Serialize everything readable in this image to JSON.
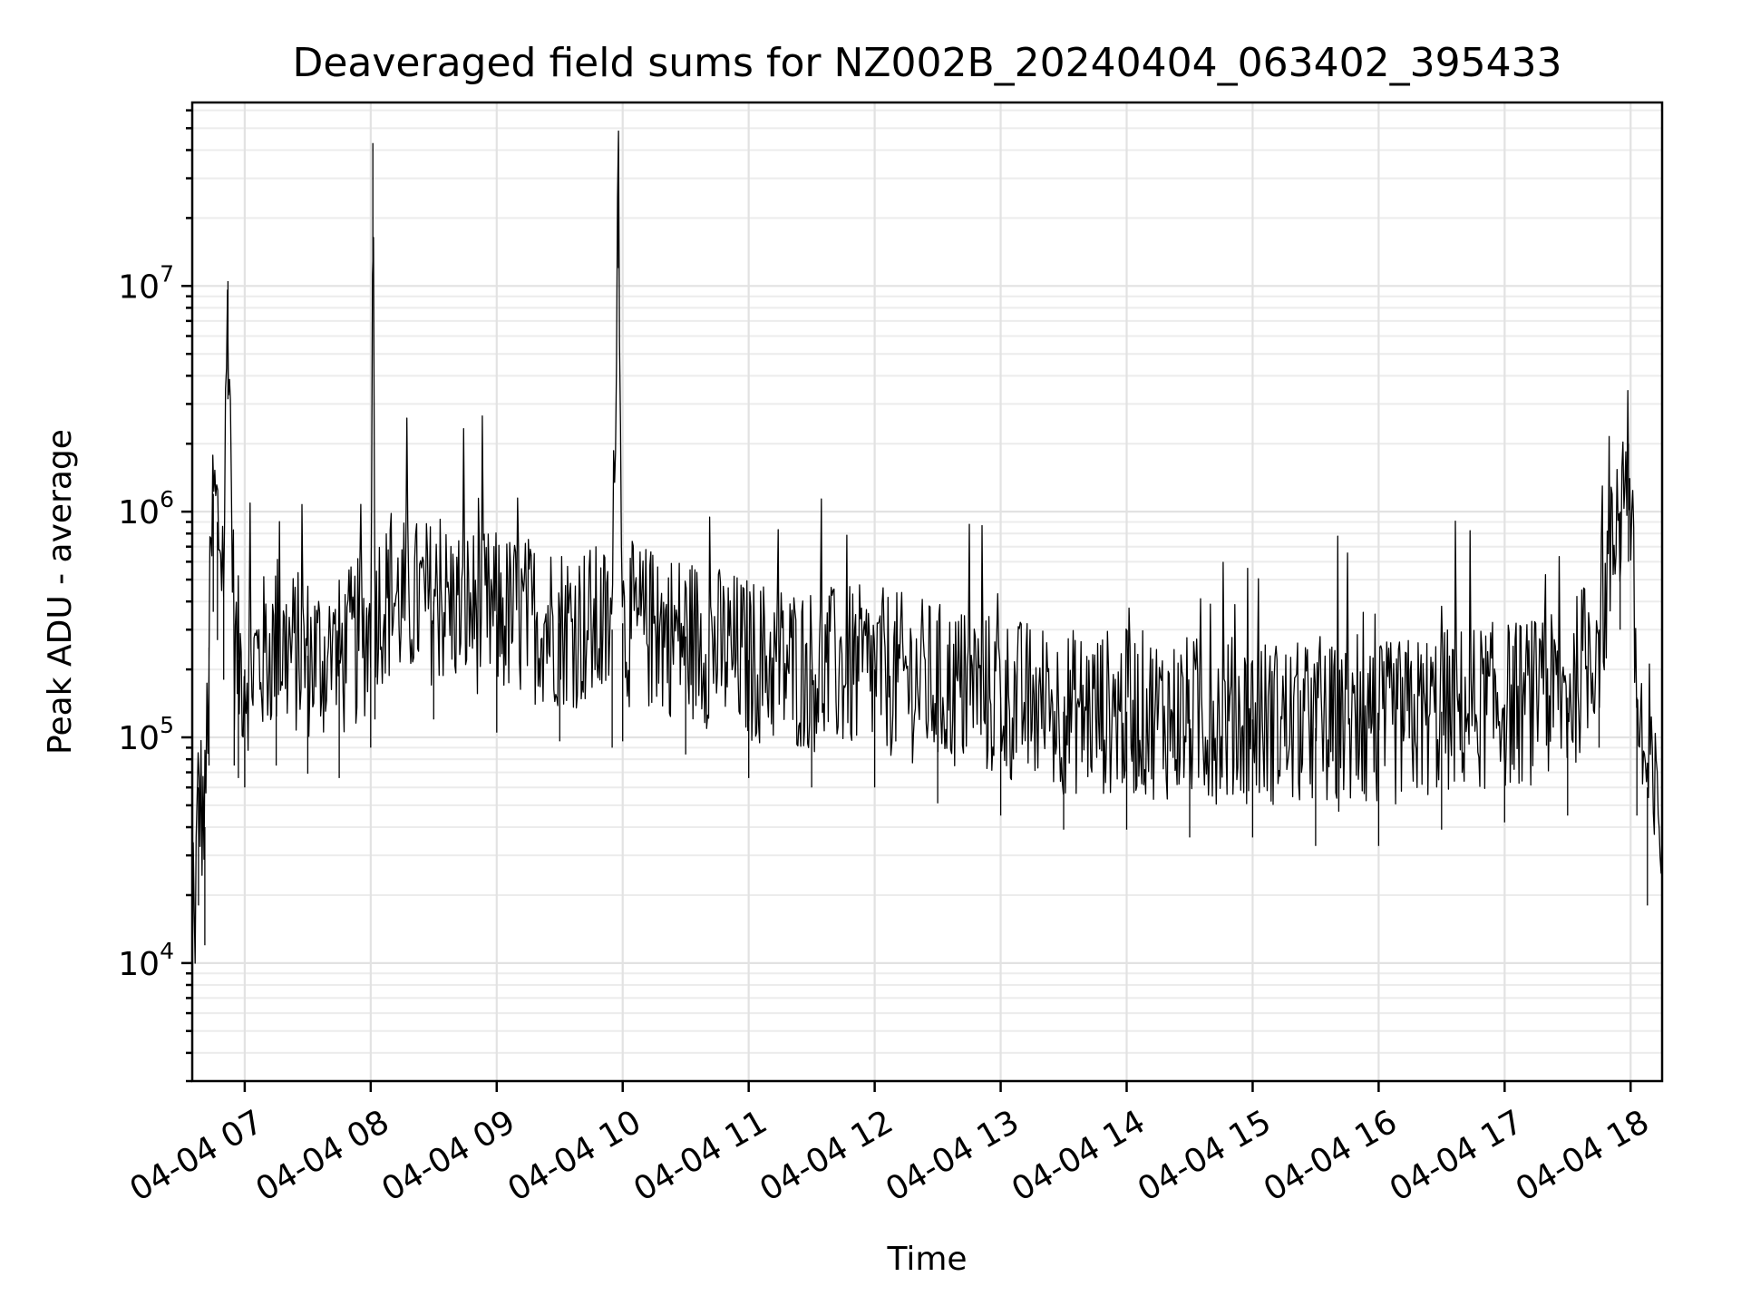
{
  "chart_data": {
    "type": "line",
    "title": "Deaveraged field sums for NZ002B_20240404_063402_395433",
    "xlabel": "Time",
    "ylabel": "Peak ADU - average",
    "yscale": "log",
    "ylim": [
      3000,
      65000000
    ],
    "xlim": [
      "2024-04-04 06:35",
      "2024-04-04 18:15"
    ],
    "grid": true,
    "grid_minor": true,
    "x_ticks": [
      "04-04 07",
      "04-04 08",
      "04-04 09",
      "04-04 10",
      "04-04 11",
      "04-04 12",
      "04-04 13",
      "04-04 14",
      "04-04 15",
      "04-04 16",
      "04-04 17",
      "04-04 18"
    ],
    "y_ticks": [
      {
        "value": 10000,
        "base": "10",
        "exp": "4"
      },
      {
        "value": 100000,
        "base": "10",
        "exp": "5"
      },
      {
        "value": 1000000,
        "base": "10",
        "exp": "6"
      },
      {
        "value": 10000000,
        "base": "10",
        "exp": "7"
      }
    ],
    "series_color": "#000000",
    "series": [
      {
        "x": [
          "2024-04-04 06:35",
          "2024-04-04 06:38",
          "2024-04-04 06:41",
          "2024-04-04 06:43",
          "2024-04-04 06:45",
          "2024-04-04 06:47",
          "2024-04-04 06:50",
          "2024-04-04 06:52",
          "2024-04-04 06:55",
          "2024-04-04 06:57",
          "2024-04-04 07:00",
          "2024-04-04 07:15",
          "2024-04-04 07:30",
          "2024-04-04 07:45",
          "2024-04-04 08:00",
          "2024-04-04 08:01",
          "2024-04-04 08:02",
          "2024-04-04 08:30",
          "2024-04-04 09:00",
          "2024-04-04 09:30",
          "2024-04-04 09:55",
          "2024-04-04 09:58",
          "2024-04-04 10:00",
          "2024-04-04 10:30",
          "2024-04-04 11:00",
          "2024-04-04 11:30",
          "2024-04-04 12:00",
          "2024-04-04 12:30",
          "2024-04-04 13:00",
          "2024-04-04 13:30",
          "2024-04-04 14:00",
          "2024-04-04 14:30",
          "2024-04-04 15:00",
          "2024-04-04 15:30",
          "2024-04-04 16:00",
          "2024-04-04 16:30",
          "2024-04-04 17:00",
          "2024-04-04 17:30",
          "2024-04-04 17:45",
          "2024-04-04 17:55",
          "2024-04-04 17:59",
          "2024-04-04 18:03",
          "2024-04-04 18:08",
          "2024-04-04 18:15"
        ],
        "y": [
          6000,
          60000,
          40000,
          250000,
          1200000,
          900000,
          600000,
          10500000,
          250000,
          220000,
          200000,
          250000,
          230000,
          220000,
          300000,
          43000000,
          400000,
          400000,
          350000,
          320000,
          300000,
          40000000,
          320000,
          280000,
          220000,
          200000,
          200000,
          170000,
          150000,
          130000,
          130000,
          120000,
          120000,
          110000,
          110000,
          130000,
          140000,
          150000,
          300000,
          1000000,
          2000000,
          150000,
          60000,
          40000
        ]
      }
    ]
  }
}
